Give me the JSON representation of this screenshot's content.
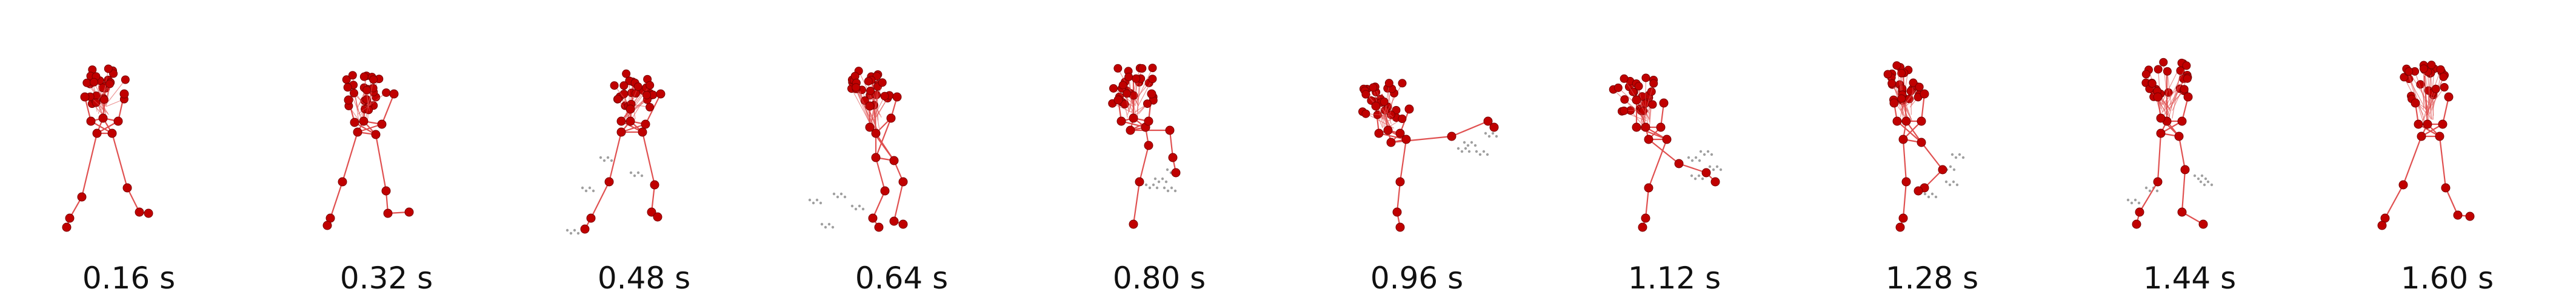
{
  "figure": {
    "frames": [
      {
        "label": "0.16 s",
        "pose": "stand"
      },
      {
        "label": "0.32 s",
        "pose": "stand2"
      },
      {
        "label": "0.48 s",
        "pose": "step"
      },
      {
        "label": "0.64 s",
        "pose": "lift"
      },
      {
        "label": "0.80 s",
        "pose": "knee"
      },
      {
        "label": "0.96 s",
        "pose": "kick"
      },
      {
        "label": "1.12 s",
        "pose": "recoil"
      },
      {
        "label": "1.28 s",
        "pose": "return"
      },
      {
        "label": "1.44 s",
        "pose": "settle"
      },
      {
        "label": "1.60 s",
        "pose": "stand3"
      }
    ],
    "colors": {
      "joint": "#c00000",
      "joint_stroke": "#7a0000",
      "bone": "#e05050",
      "ghost": "#777777"
    }
  }
}
